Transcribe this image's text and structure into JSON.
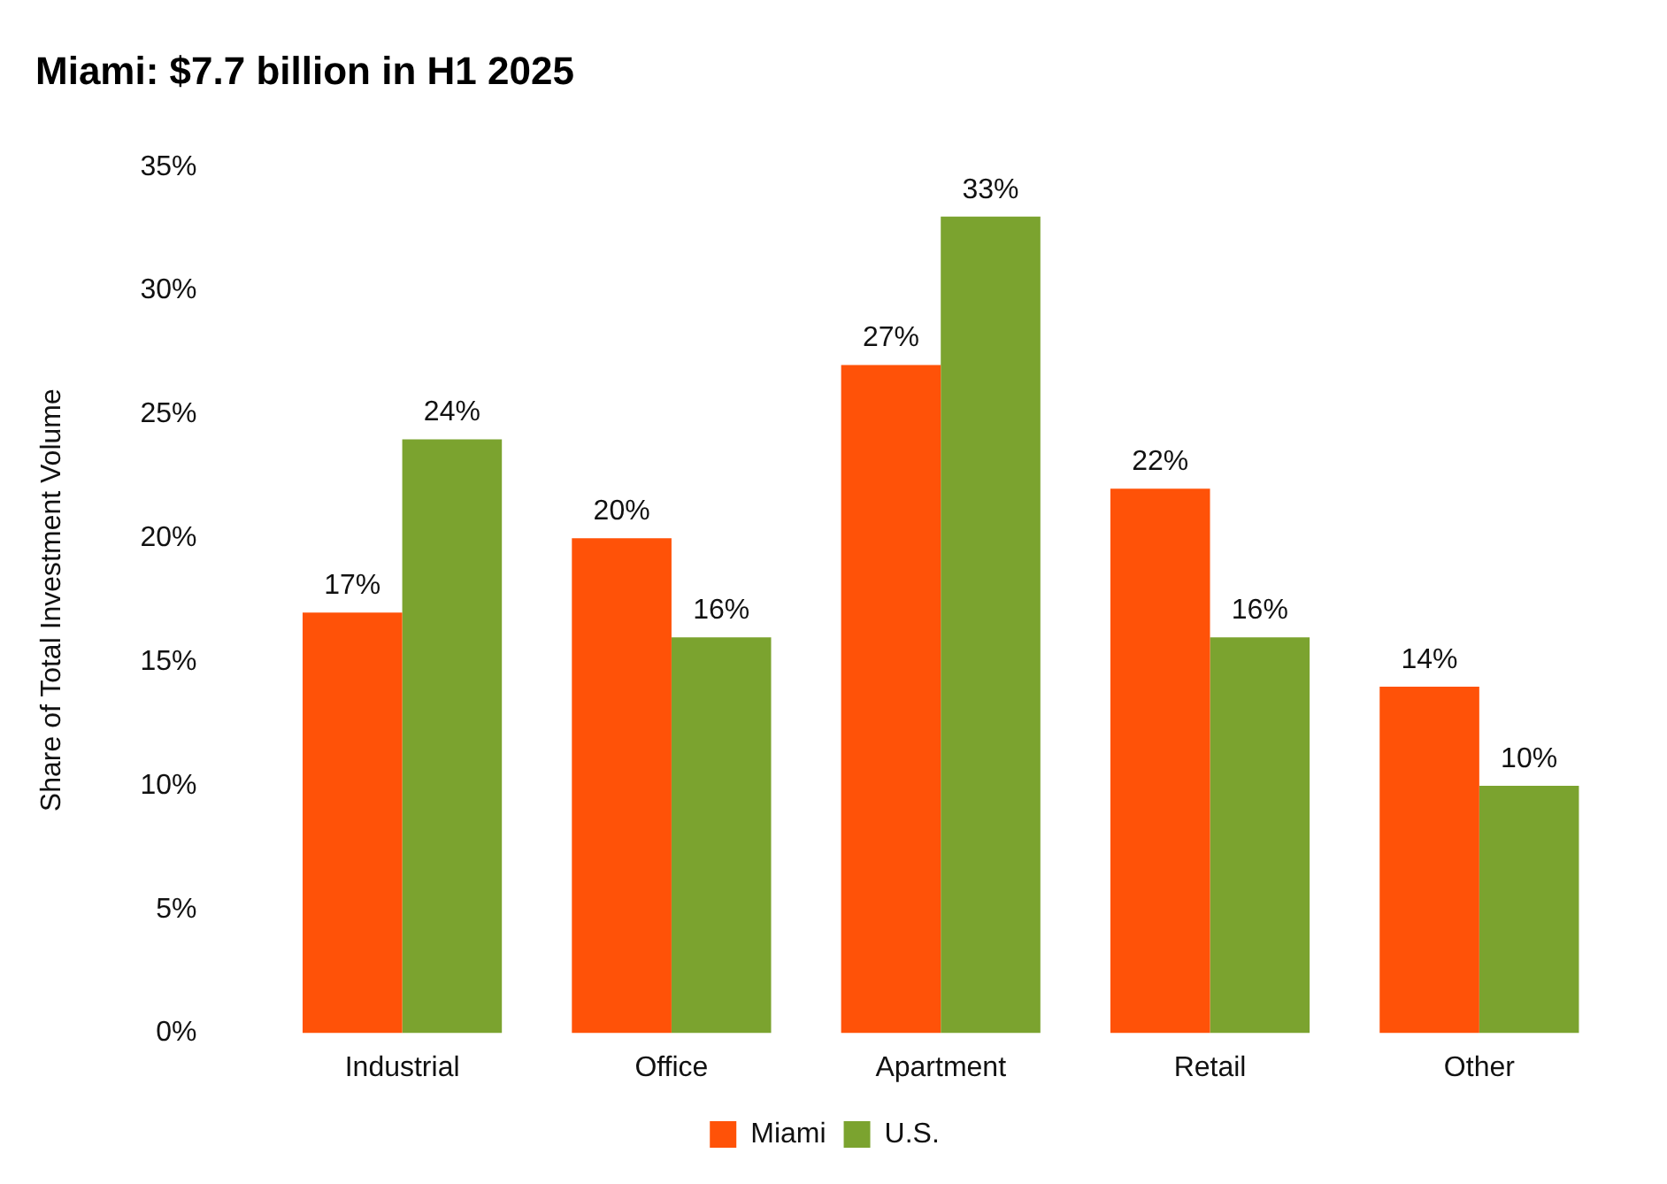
{
  "chart_data": {
    "type": "bar",
    "title": "Miami: $7.7 billion in H1 2025",
    "ylabel": "Share of Total Investment Volume",
    "categories": [
      "Industrial",
      "Office",
      "Apartment",
      "Retail",
      "Other"
    ],
    "series": [
      {
        "name": "Miami",
        "color": "#ff5208",
        "values": [
          17,
          20,
          27,
          22,
          14
        ],
        "value_labels": [
          "17%",
          "20%",
          "27%",
          "22%",
          "14%"
        ]
      },
      {
        "name": "U.S.",
        "color": "#7ba32f",
        "values": [
          24,
          16,
          33,
          16,
          10
        ],
        "value_labels": [
          "24%",
          "16%",
          "33%",
          "16%",
          "10%"
        ]
      }
    ],
    "ylim": [
      0,
      35
    ],
    "yticks": [
      {
        "value": 0,
        "label": "0%"
      },
      {
        "value": 5,
        "label": "5%"
      },
      {
        "value": 10,
        "label": "10%"
      },
      {
        "value": 15,
        "label": "15%"
      },
      {
        "value": 20,
        "label": "20%"
      },
      {
        "value": 25,
        "label": "25%"
      },
      {
        "value": 30,
        "label": "30%"
      },
      {
        "value": 35,
        "label": "35%"
      }
    ],
    "grid": false,
    "legend": "bottom"
  }
}
